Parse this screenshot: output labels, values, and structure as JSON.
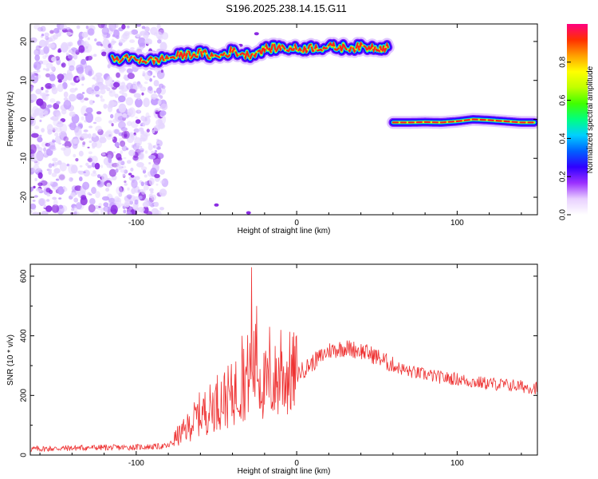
{
  "title": "S196.2025.238.14.15.G11",
  "chart_data": [
    {
      "type": "heatmap",
      "name": "spectrogram",
      "xlabel": "Height of straight line (km)",
      "ylabel": "Frequency (Hz)",
      "xlim": [
        -166,
        150
      ],
      "ylim": [
        -24.5,
        24.5
      ],
      "xticks": [
        -100,
        0,
        100
      ],
      "yticks": [
        -20,
        -10,
        0,
        10,
        20
      ],
      "colorbar": {
        "label": "Normalized spectral amplitude",
        "range": [
          0,
          1
        ],
        "ticks": [
          "0.0",
          "0.2",
          "0.4",
          "0.6",
          "0.8"
        ],
        "colors": [
          "#ffffff",
          "#e8d0ff",
          "#9b30ff",
          "#3000ff",
          "#0060ff",
          "#00d0ff",
          "#00ff80",
          "#40ff00",
          "#c0ff00",
          "#ffff00",
          "#ffa000",
          "#ff3000",
          "#ff0080"
        ]
      },
      "ridge_upper": {
        "x": [
          -115,
          -100,
          -90,
          -80,
          -70,
          -60,
          -50,
          -40,
          -30,
          -20,
          -10,
          0,
          10,
          20,
          30,
          40,
          50,
          57
        ],
        "freq": [
          15.5,
          15.5,
          15,
          15.8,
          16.5,
          17,
          16,
          17.5,
          16.5,
          18,
          18.5,
          18,
          18.5,
          18.5,
          18.5,
          18.5,
          18.5,
          18.5
        ]
      },
      "ridge_lower": {
        "x": [
          60,
          70,
          80,
          90,
          100,
          110,
          120,
          130,
          140,
          148
        ],
        "freq": [
          -0.8,
          -0.8,
          -0.7,
          -0.8,
          -0.5,
          0,
          -0.2,
          -0.5,
          -0.8,
          -0.8
        ]
      }
    },
    {
      "type": "line",
      "name": "snr",
      "xlabel": "Height of straight line (km)",
      "ylabel": "SNR (10 * v/v)",
      "xlim": [
        -166,
        150
      ],
      "ylim": [
        0,
        640
      ],
      "xticks": [
        -100,
        0,
        100
      ],
      "yticks": [
        0,
        200,
        400,
        600
      ],
      "color": "#ee3333",
      "series": [
        {
          "name": "SNR",
          "x": [
            -166,
            -150,
            -130,
            -110,
            -90,
            -80,
            -75,
            -70,
            -65,
            -60,
            -55,
            -50,
            -45,
            -40,
            -35,
            -30,
            -27,
            -25,
            -22,
            -20,
            -15,
            -10,
            -5,
            0,
            10,
            20,
            30,
            40,
            50,
            60,
            70,
            80,
            90,
            100,
            110,
            120,
            130,
            140,
            150
          ],
          "y": [
            20,
            22,
            25,
            25,
            28,
            30,
            60,
            80,
            110,
            140,
            150,
            180,
            190,
            200,
            240,
            270,
            300,
            290,
            250,
            230,
            240,
            260,
            270,
            270,
            310,
            350,
            360,
            350,
            330,
            300,
            280,
            270,
            260,
            255,
            245,
            240,
            235,
            230,
            225
          ]
        }
      ],
      "spikes": [
        {
          "x": -28,
          "y": 630
        },
        {
          "x": -25,
          "y": 500
        },
        {
          "x": -34,
          "y": 400
        },
        {
          "x": -10,
          "y": 420
        },
        {
          "x": -17,
          "y": 430
        }
      ]
    }
  ]
}
